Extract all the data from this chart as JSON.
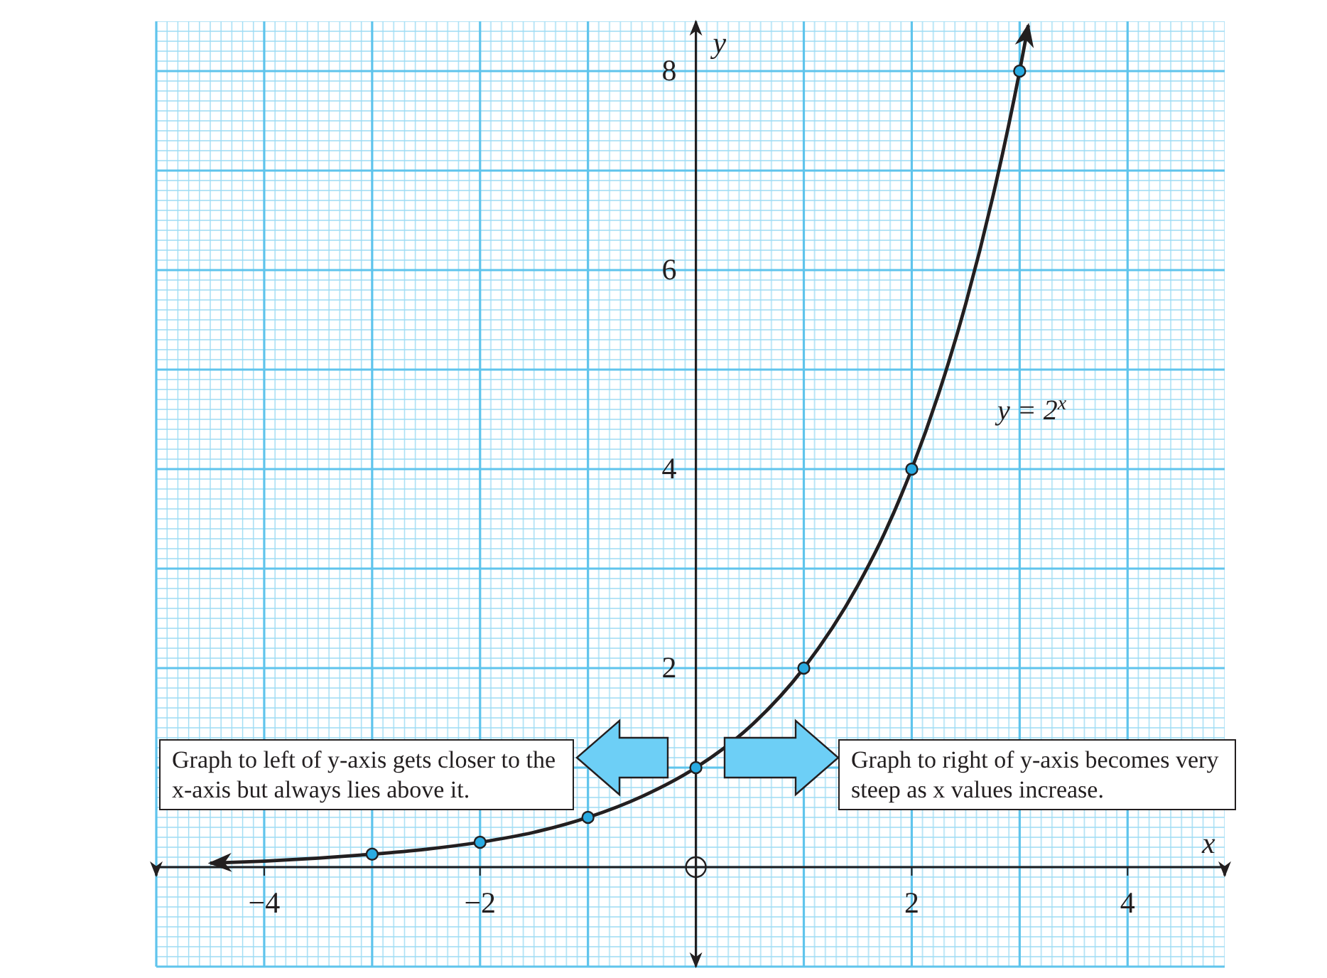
{
  "chart_data": {
    "type": "line",
    "xlabel": "x",
    "ylabel": "y",
    "xlim": [
      -5,
      4.9
    ],
    "ylim": [
      -1,
      8.5
    ],
    "xticks": [
      {
        "value": -4,
        "label": "−4"
      },
      {
        "value": -2,
        "label": "−2"
      },
      2,
      4
    ],
    "yticks": [
      2,
      4,
      6,
      8
    ],
    "grid": true,
    "series": [
      {
        "color": "#231f20",
        "marker": "none",
        "x": [
          -4.5,
          -4,
          -3.5,
          -3,
          -2.5,
          -2,
          -1.5,
          -1,
          -0.5,
          0,
          0.5,
          1,
          1.5,
          1.75,
          2,
          2.25,
          2.5,
          2.75,
          3,
          3.08
        ],
        "values": [
          0.04,
          0.06,
          0.09,
          0.13,
          0.18,
          0.25,
          0.35,
          0.5,
          0.71,
          1,
          1.41,
          2,
          2.83,
          3.36,
          4,
          4.76,
          5.66,
          6.73,
          8,
          8.46
        ]
      },
      {
        "type": "scatter",
        "color": "#29abe2",
        "marker": "circle",
        "x": [
          -3,
          -2,
          -1,
          0,
          1,
          2,
          3
        ],
        "values": [
          0.13,
          0.25,
          0.5,
          1,
          2,
          4,
          8
        ]
      }
    ],
    "annotations": [
      "y = 2$^{x}$",
      "Graph to left of y-axis gets closer to the x-axis but always lies above it.",
      "Graph to right of y-axis becomes very steep as x values increase."
    ]
  }
}
